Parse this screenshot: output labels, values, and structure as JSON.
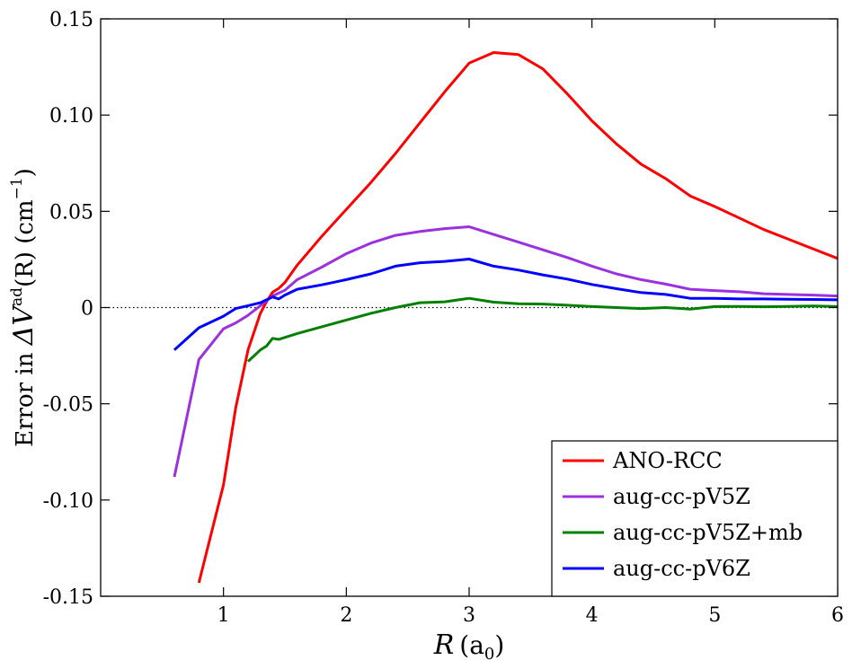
{
  "chart_data": {
    "type": "line",
    "title": "",
    "xlabel": {
      "var": "R",
      "unit": "(a",
      "sub": "0",
      "close": ")"
    },
    "ylabel": {
      "prefix": "Error in ",
      "delta": "ΔV",
      "sup": "ad",
      "arg": "(R) (cm",
      "exp": "−1",
      "close": ")"
    },
    "xlim": [
      0,
      6
    ],
    "ylim": [
      -0.15,
      0.15
    ],
    "xticks": [
      1,
      2,
      3,
      4,
      5,
      6
    ],
    "xtick_labels": [
      "1",
      "2",
      "3",
      "4",
      "5",
      "6"
    ],
    "yticks": [
      -0.15,
      -0.1,
      -0.05,
      0,
      0.05,
      0.1,
      0.15
    ],
    "ytick_labels": [
      "-0.15",
      "-0.10",
      "-0.05",
      "0",
      "0.05",
      "0.10",
      "0.15"
    ],
    "zero_line": "dotted",
    "legend_position": "lower-right",
    "series": [
      {
        "name": "ANO-RCC",
        "color": "#ff0000",
        "x": [
          0.8,
          1.0,
          1.1,
          1.2,
          1.3,
          1.35,
          1.4,
          1.45,
          1.5,
          1.6,
          1.8,
          2.0,
          2.2,
          2.4,
          2.6,
          2.8,
          3.0,
          3.2,
          3.4,
          3.6,
          3.8,
          4.0,
          4.2,
          4.4,
          4.6,
          4.8,
          5.0,
          5.2,
          5.4,
          5.6,
          5.8,
          6.0
        ],
        "values": [
          -0.143,
          -0.092,
          -0.052,
          -0.022,
          -0.003,
          0.003,
          0.008,
          0.01,
          0.013,
          0.022,
          0.037,
          0.051,
          0.065,
          0.08,
          0.096,
          0.112,
          0.127,
          0.1325,
          0.1315,
          0.124,
          0.111,
          0.097,
          0.085,
          0.0745,
          0.067,
          0.058,
          0.0525,
          0.0465,
          0.0405,
          0.0355,
          0.0305,
          0.0255
        ]
      },
      {
        "name": "aug-cc-pV5Z",
        "color": "#9b30e0",
        "x": [
          0.6,
          0.8,
          1.0,
          1.1,
          1.2,
          1.3,
          1.4,
          1.5,
          1.6,
          1.8,
          2.0,
          2.2,
          2.4,
          2.6,
          2.8,
          3.0,
          3.2,
          3.4,
          3.6,
          3.8,
          4.0,
          4.2,
          4.4,
          4.6,
          4.8,
          5.0,
          5.2,
          5.4,
          5.6,
          5.8,
          6.0
        ],
        "values": [
          -0.088,
          -0.027,
          -0.011,
          -0.008,
          -0.004,
          0.001,
          0.006,
          0.009,
          0.0145,
          0.021,
          0.028,
          0.0335,
          0.0375,
          0.0395,
          0.041,
          0.042,
          0.038,
          0.034,
          0.03,
          0.026,
          0.0215,
          0.0175,
          0.0145,
          0.0122,
          0.0095,
          0.0088,
          0.0082,
          0.0072,
          0.0068,
          0.0065,
          0.006
        ]
      },
      {
        "name": "aug-cc-pV5Z+mb",
        "color": "#008000",
        "x": [
          1.2,
          1.3,
          1.35,
          1.4,
          1.45,
          1.6,
          1.8,
          2.0,
          2.2,
          2.4,
          2.6,
          2.8,
          3.0,
          3.2,
          3.4,
          3.6,
          3.8,
          4.0,
          4.2,
          4.4,
          4.6,
          4.8,
          5.0,
          5.2,
          5.4,
          5.6,
          5.8,
          6.0
        ],
        "values": [
          -0.028,
          -0.022,
          -0.02,
          -0.016,
          -0.0165,
          -0.0135,
          -0.01,
          -0.0065,
          -0.003,
          0.0,
          0.0025,
          0.003,
          0.0048,
          0.0028,
          0.002,
          0.0018,
          0.0012,
          0.0005,
          0.0,
          -0.0005,
          0.0,
          -0.0008,
          0.0005,
          0.0006,
          0.0004,
          0.0006,
          0.0008,
          0.0005
        ]
      },
      {
        "name": "aug-cc-pV6Z",
        "color": "#0000ff",
        "x": [
          0.6,
          0.8,
          1.0,
          1.1,
          1.2,
          1.3,
          1.4,
          1.45,
          1.5,
          1.6,
          1.8,
          2.0,
          2.2,
          2.4,
          2.6,
          2.8,
          3.0,
          3.2,
          3.4,
          3.6,
          3.8,
          4.0,
          4.2,
          4.4,
          4.6,
          4.8,
          5.0,
          5.2,
          5.4,
          5.6,
          5.8,
          6.0
        ],
        "values": [
          -0.022,
          -0.0105,
          -0.0045,
          -0.0005,
          0.001,
          0.0025,
          0.0055,
          0.0045,
          0.0065,
          0.0095,
          0.0118,
          0.0145,
          0.0175,
          0.0215,
          0.0233,
          0.024,
          0.0252,
          0.0215,
          0.0195,
          0.017,
          0.0148,
          0.012,
          0.0098,
          0.0078,
          0.0068,
          0.0048,
          0.0048,
          0.0045,
          0.0045,
          0.0043,
          0.0042,
          0.004
        ]
      }
    ]
  }
}
